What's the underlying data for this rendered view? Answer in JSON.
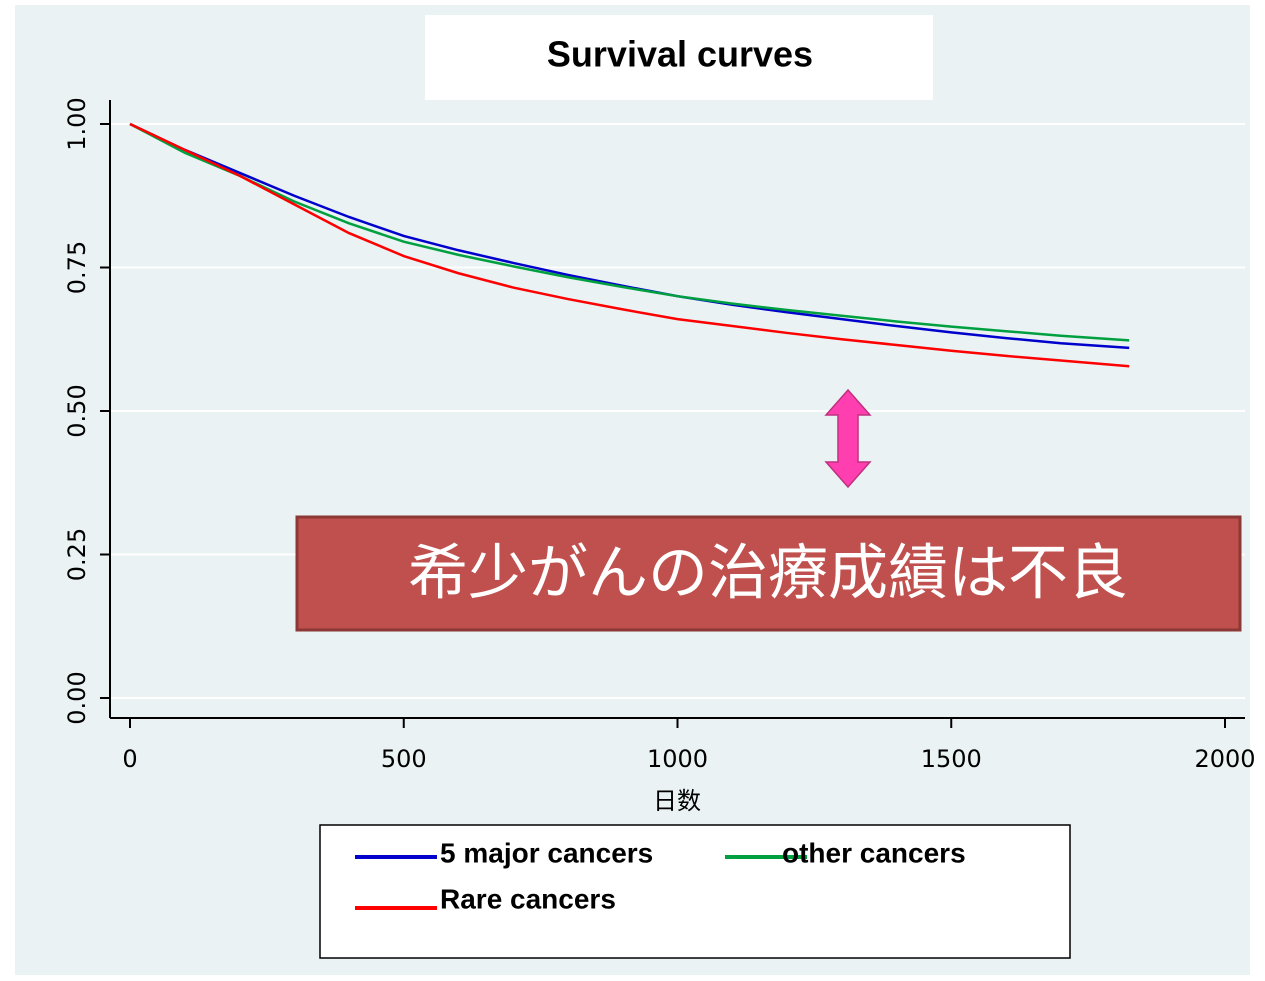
{
  "chart_data": {
    "type": "line",
    "title": "Survival curves",
    "x_label": "日数",
    "annotation": "希少がんの治療成績は不良",
    "x": [
      0,
      100,
      200,
      300,
      400,
      500,
      600,
      700,
      800,
      900,
      1000,
      1100,
      1200,
      1300,
      1400,
      1500,
      1600,
      1700,
      1825
    ],
    "series": [
      {
        "name": "5 major cancers",
        "color": "#0000cc",
        "values": [
          1.0,
          0.955,
          0.915,
          0.875,
          0.838,
          0.805,
          0.78,
          0.758,
          0.737,
          0.718,
          0.7,
          0.685,
          0.672,
          0.66,
          0.648,
          0.637,
          0.627,
          0.618,
          0.61
        ]
      },
      {
        "name": "other cancers",
        "color": "#00a040",
        "values": [
          1.0,
          0.95,
          0.91,
          0.865,
          0.827,
          0.795,
          0.772,
          0.752,
          0.733,
          0.716,
          0.7,
          0.687,
          0.676,
          0.666,
          0.656,
          0.647,
          0.639,
          0.631,
          0.623
        ]
      },
      {
        "name": "Rare cancers",
        "color": "#ff0000",
        "values": [
          1.0,
          0.955,
          0.91,
          0.86,
          0.81,
          0.77,
          0.74,
          0.715,
          0.695,
          0.677,
          0.66,
          0.648,
          0.636,
          0.625,
          0.615,
          0.605,
          0.596,
          0.588,
          0.578
        ]
      }
    ],
    "xlim": [
      0,
      2000
    ],
    "xticks": [
      0,
      500,
      1000,
      1500,
      2000
    ],
    "ylim": [
      0,
      1
    ],
    "yticks": [
      {
        "value": 0,
        "label": "0.00"
      },
      {
        "value": 0.25,
        "label": "0.25"
      },
      {
        "value": 0.5,
        "label": "0.50"
      },
      {
        "value": 0.75,
        "label": "0.75"
      },
      {
        "value": 1,
        "label": "1.00"
      }
    ],
    "grid": true
  }
}
